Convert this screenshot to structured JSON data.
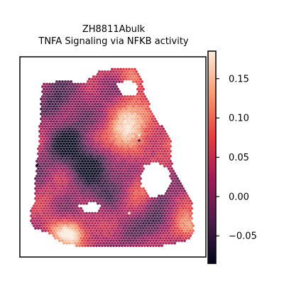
{
  "title_line1": "ZH8811Abulk",
  "title_line2": "TNFA Signaling via NFKB activity",
  "chart_data": {
    "type": "heatmap",
    "subtype": "spatial spot map",
    "title": "ZH8811Abulk\nTNFA Signaling via NFKB activity",
    "colormap": "rocket",
    "colormap_stops": [
      "#03051a",
      "#4c1d4b",
      "#a11a5b",
      "#e83f3f",
      "#f69c73",
      "#faebdd"
    ],
    "color_range": [
      -0.085,
      0.185
    ],
    "colorbar_ticks": [
      {
        "value": -0.05,
        "label": "−0.05"
      },
      {
        "value": 0.0,
        "label": "0.00"
      },
      {
        "value": 0.05,
        "label": "0.05"
      },
      {
        "value": 0.1,
        "label": "0.10"
      },
      {
        "value": 0.15,
        "label": "0.15"
      }
    ],
    "colorbar_position": "right",
    "axes_ticks": "none",
    "grid": false,
    "field_description": "values mostly between -0.05 and 0.07; bright hotspot near upper-right center (~0.15-0.18); dark low regions in center-left (~-0.08)"
  }
}
